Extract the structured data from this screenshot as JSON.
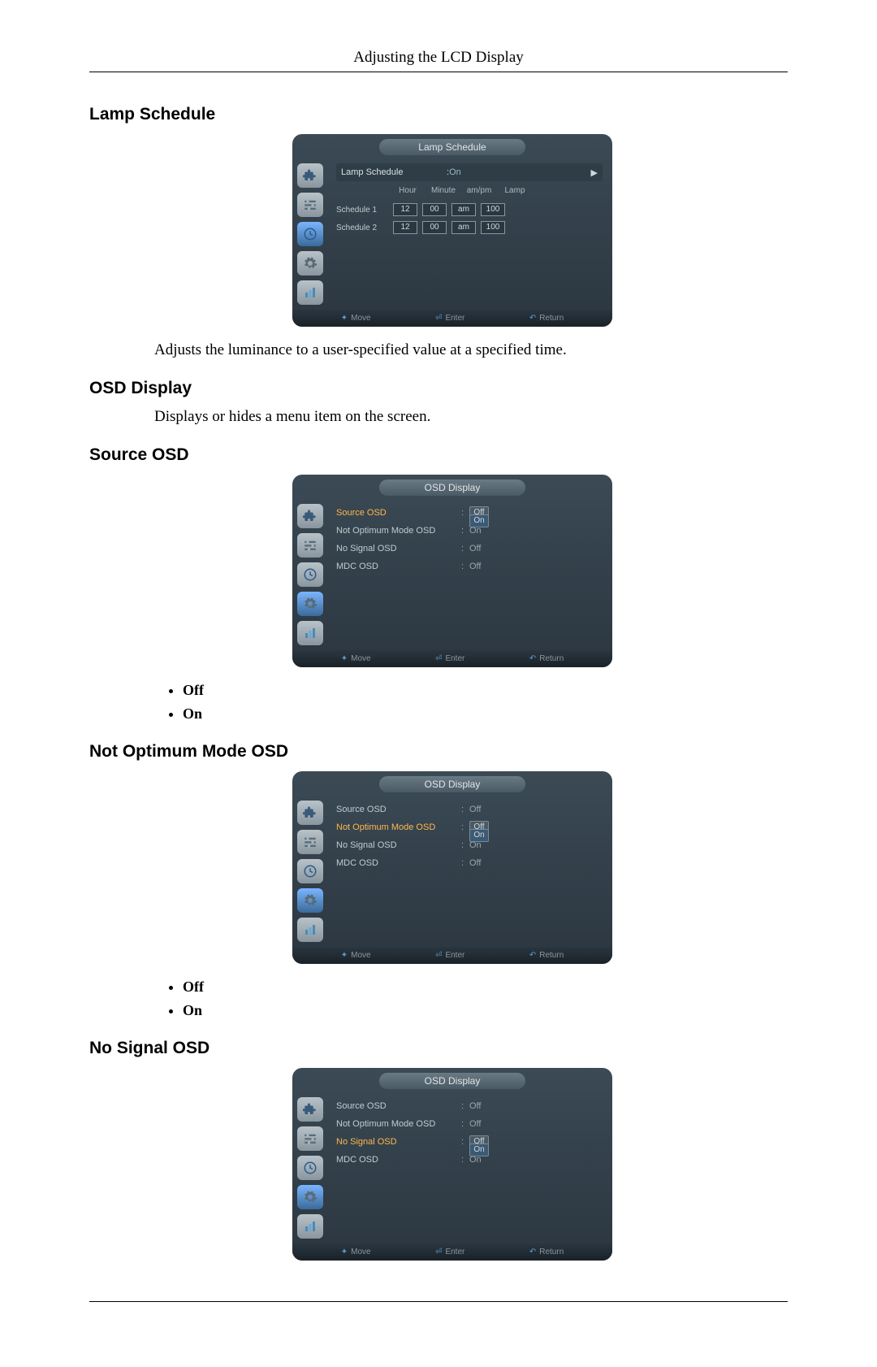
{
  "page": {
    "header": "Adjusting the LCD Display"
  },
  "lamp_schedule": {
    "heading": "Lamp Schedule",
    "desc": "Adjusts the luminance to a user-specified value at a specified time.",
    "osd": {
      "title": "Lamp Schedule",
      "toggle_label": "Lamp Schedule",
      "toggle_value": "On",
      "col_headers": {
        "hour": "Hour",
        "minute": "Minute",
        "ampm": "am/pm",
        "lamp": "Lamp"
      },
      "rows": [
        {
          "label": "Schedule 1",
          "hour": "12",
          "minute": "00",
          "ampm": "am",
          "lamp": "100"
        },
        {
          "label": "Schedule 2",
          "hour": "12",
          "minute": "00",
          "ampm": "am",
          "lamp": "100"
        }
      ]
    }
  },
  "osd_display": {
    "heading": "OSD Display",
    "desc": "Displays or hides a menu item on the screen."
  },
  "source_osd": {
    "heading": "Source OSD",
    "options": {
      "off": "Off",
      "on": "On"
    },
    "osd": {
      "title": "OSD Display",
      "items": [
        {
          "label": "Source OSD",
          "value": "Off",
          "highlight": true,
          "pill_value": true,
          "alt": "On"
        },
        {
          "label": "Not Optimum Mode OSD",
          "value": "On",
          "highlight": false,
          "pill_value": false
        },
        {
          "label": "No Signal OSD",
          "value": "Off",
          "highlight": false,
          "pill_value": false
        },
        {
          "label": "MDC OSD",
          "value": "Off",
          "highlight": false,
          "pill_value": false
        }
      ]
    }
  },
  "not_optimum": {
    "heading": "Not Optimum Mode OSD",
    "options": {
      "off": "Off",
      "on": "On"
    },
    "osd": {
      "title": "OSD Display",
      "items": [
        {
          "label": "Source OSD",
          "value": "Off",
          "highlight": false,
          "pill_value": false
        },
        {
          "label": "Not Optimum Mode OSD",
          "value": "Off",
          "highlight": true,
          "pill_value": true,
          "alt": "On"
        },
        {
          "label": "No Signal OSD",
          "value": "On",
          "highlight": false,
          "pill_value": false
        },
        {
          "label": "MDC OSD",
          "value": "Off",
          "highlight": false,
          "pill_value": false
        }
      ]
    }
  },
  "no_signal": {
    "heading": "No Signal OSD",
    "osd": {
      "title": "OSD Display",
      "items": [
        {
          "label": "Source OSD",
          "value": "Off",
          "highlight": false,
          "pill_value": false
        },
        {
          "label": "Not Optimum Mode OSD",
          "value": "Off",
          "highlight": false,
          "pill_value": false
        },
        {
          "label": "No Signal OSD",
          "value": "Off",
          "highlight": true,
          "pill_value": true,
          "alt": "On"
        },
        {
          "label": "MDC OSD",
          "value": "On",
          "highlight": false,
          "pill_value": false
        }
      ]
    }
  },
  "osd_common": {
    "footer": {
      "move": "Move",
      "enter": "Enter",
      "return": "Return"
    },
    "icons": [
      "puzzle",
      "sliders",
      "clock",
      "gear",
      "chart"
    ]
  },
  "style": {
    "osd_bg_top": "#3b4a55",
    "osd_bg_bottom": "#2b3640",
    "highlight_color": "#ffb74d",
    "icon_gradient_top": "#b8c2c8",
    "icon_gradient_bottom": "#8a969e"
  }
}
